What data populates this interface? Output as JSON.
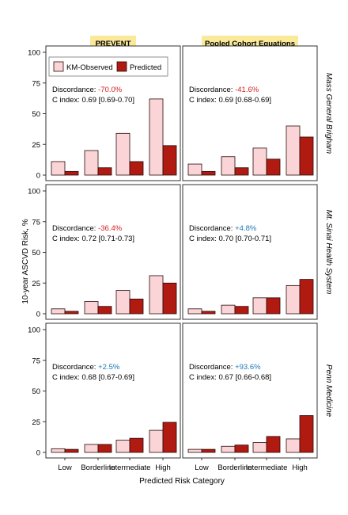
{
  "chart_data": {
    "type": "bar",
    "ylabel": "10-year ASCVD Risk, %",
    "xlabel": "Predicted Risk Category",
    "ylim": [
      0,
      100
    ],
    "yticks": [
      0,
      25,
      50,
      75,
      100
    ],
    "categories": [
      "Low",
      "Borderline",
      "Intermediate",
      "High"
    ],
    "columns": [
      "PREVENT",
      "Pooled Cohort Equations"
    ],
    "rows": [
      "Mass General Brigham",
      "Mt. Sinai Health System",
      "Penn Medicine"
    ],
    "legend": {
      "placement": "top-left",
      "entries": [
        "KM-Observed",
        "Predicted"
      ]
    },
    "colors": {
      "observed_fill": "#fad4d6",
      "predicted_fill": "#b01a10",
      "bar_stroke": "#2a0a0a",
      "header_bg": "#fbe99a",
      "negative_text": "#d21e1e",
      "positive_text": "#1f78b4"
    },
    "discordance_label": "Discordance:",
    "panels": [
      {
        "row": 0,
        "col": 0,
        "discordance": "-70.0%",
        "c_index": "C index: 0.69 [0.69-0.70]",
        "series": [
          {
            "name": "KM-Observed",
            "values": [
              11,
              20,
              34,
              62
            ]
          },
          {
            "name": "Predicted",
            "values": [
              3,
              6,
              11,
              24
            ]
          }
        ]
      },
      {
        "row": 0,
        "col": 1,
        "discordance": "-41.6%",
        "c_index": "C index: 0.69 [0.68-0.69]",
        "series": [
          {
            "name": "KM-Observed",
            "values": [
              9,
              15,
              22,
              40
            ]
          },
          {
            "name": "Predicted",
            "values": [
              3,
              6,
              13,
              31
            ]
          }
        ]
      },
      {
        "row": 1,
        "col": 0,
        "discordance": "-36.4%",
        "c_index": "C index: 0.72 [0.71-0.73]",
        "series": [
          {
            "name": "KM-Observed",
            "values": [
              4,
              10,
              19,
              31
            ]
          },
          {
            "name": "Predicted",
            "values": [
              2,
              6,
              12,
              25
            ]
          }
        ]
      },
      {
        "row": 1,
        "col": 1,
        "discordance": "+4.8%",
        "c_index": "C index: 0.70 [0.70-0.71]",
        "series": [
          {
            "name": "KM-Observed",
            "values": [
              4,
              7,
              13,
              23
            ]
          },
          {
            "name": "Predicted",
            "values": [
              2,
              6,
              13,
              28
            ]
          }
        ]
      },
      {
        "row": 2,
        "col": 0,
        "discordance": "+2.5%",
        "c_index": "C index: 0.68 [0.67-0.69]",
        "series": [
          {
            "name": "KM-Observed",
            "values": [
              3,
              6.5,
              10,
              18
            ]
          },
          {
            "name": "Predicted",
            "values": [
              2.5,
              6.5,
              11.5,
              24.5
            ]
          }
        ]
      },
      {
        "row": 2,
        "col": 1,
        "discordance": "+93.6%",
        "c_index": "C index: 0.67 [0.66-0.68]",
        "series": [
          {
            "name": "KM-Observed",
            "values": [
              2.5,
              5,
              8,
              11
            ]
          },
          {
            "name": "Predicted",
            "values": [
              2.5,
              6,
              13,
              30
            ]
          }
        ]
      }
    ]
  }
}
